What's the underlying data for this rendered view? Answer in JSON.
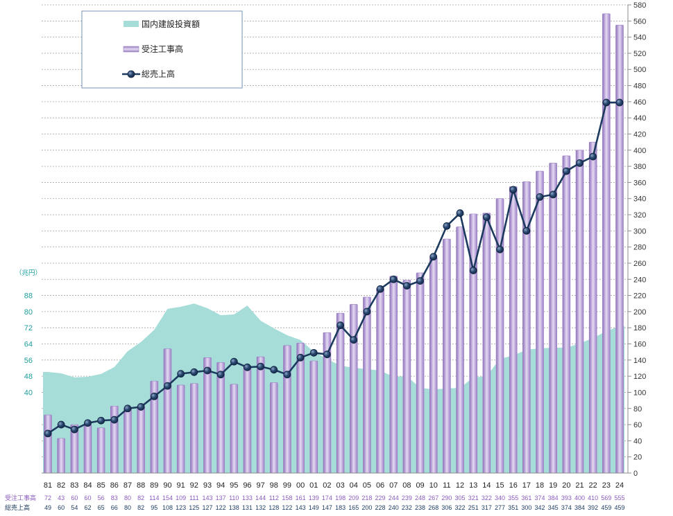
{
  "chart_data": {
    "type": "bar",
    "categories": [
      "81",
      "82",
      "83",
      "84",
      "85",
      "86",
      "87",
      "88",
      "89",
      "90",
      "91",
      "92",
      "93",
      "94",
      "95",
      "96",
      "97",
      "98",
      "99",
      "00",
      "01",
      "02",
      "03",
      "04",
      "05",
      "06",
      "07",
      "08",
      "09",
      "10",
      "11",
      "12",
      "13",
      "14",
      "15",
      "16",
      "17",
      "18",
      "19",
      "20",
      "21",
      "22",
      "23",
      "24"
    ],
    "series": [
      {
        "name": "国内建設投資額",
        "type": "area",
        "color": "#a6ddd9",
        "values": [
          50.1,
          49.4,
          47.4,
          47.7,
          49.1,
          52.5,
          60.4,
          64.9,
          71.0,
          81.4,
          82.4,
          84.0,
          81.7,
          78.2,
          78.6,
          83.0,
          75.5,
          71.7,
          68.3,
          65.9,
          60.1,
          56.6,
          53.2,
          52.2,
          51.5,
          50.8,
          47.7,
          48.0,
          42.2,
          41.5,
          41.9,
          42.2,
          47.4,
          48.0,
          56.6,
          58.3,
          61.1,
          61.8,
          62.1,
          62.1,
          64.2,
          66.9,
          70.3,
          72.8
        ]
      },
      {
        "name": "受注工事高",
        "type": "bar",
        "color": "#b9a2d8",
        "values": [
          72,
          43,
          60,
          60,
          56,
          83,
          80,
          82,
          114,
          154,
          109,
          111,
          143,
          137,
          110,
          133,
          144,
          112,
          158,
          161,
          139,
          174,
          198,
          209,
          218,
          229,
          244,
          239,
          248,
          267,
          290,
          305,
          321,
          322,
          340,
          355,
          361,
          374,
          384,
          393,
          400,
          410,
          569,
          555
        ]
      },
      {
        "name": "総売上高",
        "type": "line",
        "color": "#1c3a5e",
        "values": [
          49,
          60,
          54,
          62,
          65,
          66,
          80,
          82,
          95,
          108,
          123,
          125,
          127,
          122,
          138,
          131,
          132,
          128,
          122,
          143,
          149,
          147,
          183,
          165,
          200,
          228,
          240,
          232,
          238,
          268,
          306,
          322,
          251,
          317,
          277,
          351,
          300,
          342,
          345,
          374,
          384,
          392,
          459,
          459
        ]
      }
    ],
    "y_left": {
      "label": "（兆円）",
      "ylim": [
        0,
        232
      ],
      "ticks": [
        40,
        48,
        56,
        64,
        72,
        80,
        88
      ],
      "series": [
        0
      ],
      "color": "#1f9e9e"
    },
    "y_right": {
      "ylim": [
        0,
        580
      ],
      "ticks": [
        0,
        20,
        40,
        60,
        80,
        100,
        120,
        140,
        160,
        180,
        200,
        220,
        240,
        260,
        280,
        300,
        320,
        340,
        360,
        380,
        400,
        420,
        440,
        460,
        480,
        500,
        520,
        540,
        560,
        580
      ],
      "series": [
        1,
        2
      ]
    },
    "grid": true,
    "legend": {
      "position": "top-left"
    },
    "data_table": {
      "rows": [
        {
          "label": "受注工事高",
          "series": 1,
          "color": "#8a5cbf"
        },
        {
          "label": "総売上高",
          "series": 2,
          "color": "#1c3a5e"
        }
      ]
    }
  }
}
